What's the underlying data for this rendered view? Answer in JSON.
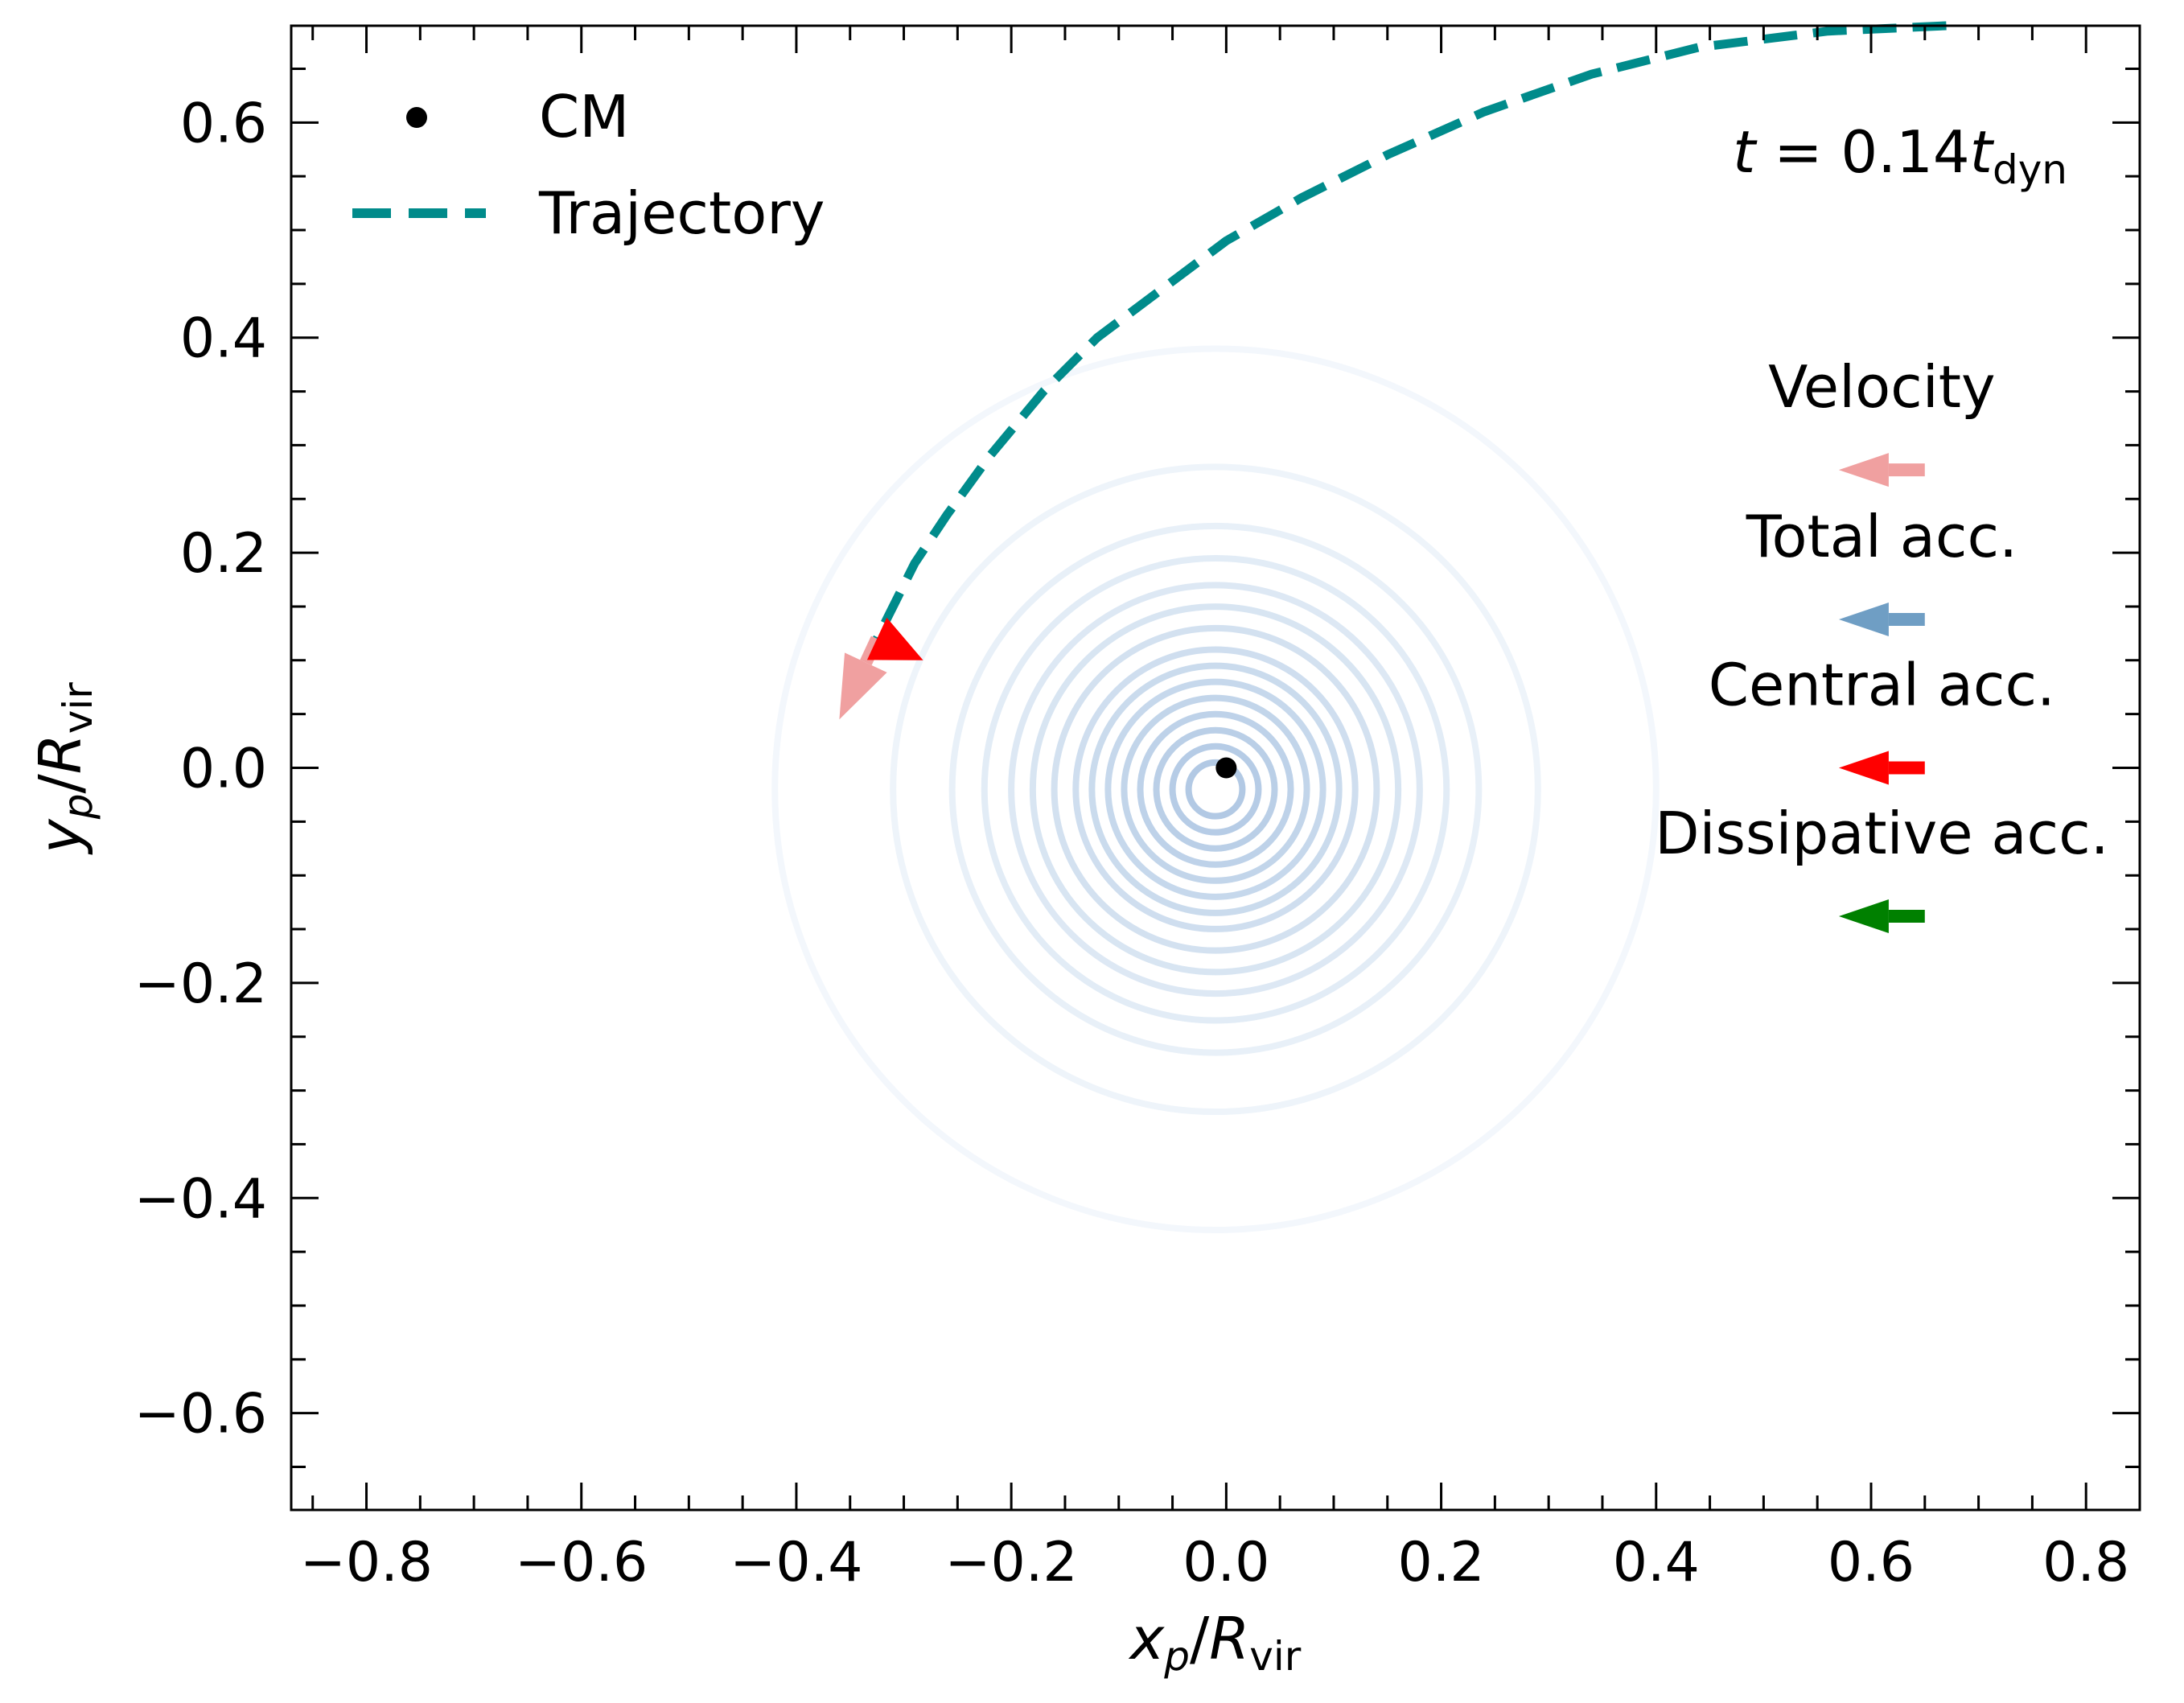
{
  "chart_data": {
    "type": "scatter",
    "xlabel": {
      "var": "x",
      "sub": "p",
      "slash": "/",
      "denom": "R",
      "denom_sub": "vir"
    },
    "ylabel": {
      "var": "y",
      "sub": "p",
      "slash": "/",
      "denom": "R",
      "denom_sub": "vir"
    },
    "xlim": [
      -0.87,
      0.85
    ],
    "ylim": [
      -0.69,
      0.69
    ],
    "xticks": [
      {
        "v": -0.8,
        "label": "−0.8"
      },
      {
        "v": -0.6,
        "label": "−0.6"
      },
      {
        "v": -0.4,
        "label": "−0.4"
      },
      {
        "v": -0.2,
        "label": "−0.2"
      },
      {
        "v": 0.0,
        "label": "0.0"
      },
      {
        "v": 0.2,
        "label": "0.2"
      },
      {
        "v": 0.4,
        "label": "0.4"
      },
      {
        "v": 0.6,
        "label": "0.6"
      },
      {
        "v": 0.8,
        "label": "0.8"
      }
    ],
    "yticks": [
      {
        "v": -0.6,
        "label": "−0.6"
      },
      {
        "v": -0.4,
        "label": "−0.4"
      },
      {
        "v": -0.2,
        "label": "−0.2"
      },
      {
        "v": 0.0,
        "label": "0.0"
      },
      {
        "v": 0.2,
        "label": "0.2"
      },
      {
        "v": 0.4,
        "label": "0.4"
      },
      {
        "v": 0.6,
        "label": "0.6"
      }
    ],
    "minor_step": 0.05,
    "grid": false,
    "legend_position": "upper-left",
    "legend": [
      {
        "label": "CM",
        "marker": "dot",
        "color": "#000000"
      },
      {
        "label": "Trajectory",
        "marker": "dashed-line",
        "color": "#008b8b"
      }
    ],
    "time_label": {
      "lhs": "t",
      "eq": " = 0.14",
      "var": "t",
      "sub": "dyn"
    },
    "cm_point": {
      "x": 0.0,
      "y": 0.0
    },
    "contours": {
      "center": [
        -0.01,
        -0.02
      ],
      "radii": [
        0.41,
        0.3,
        0.245,
        0.215,
        0.19,
        0.17,
        0.15,
        0.13,
        0.115,
        0.1,
        0.085,
        0.07,
        0.055,
        0.04,
        0.025
      ],
      "colors": [
        "#f3f7fc",
        "#eef4fa",
        "#e8f0f8",
        "#e2ecf6",
        "#dde8f4",
        "#d8e5f2",
        "#d3e1f0",
        "#cfdeef",
        "#cadbed",
        "#c6d8ec",
        "#c2d5ea",
        "#bed2e9",
        "#bacfe7",
        "#b6cce6",
        "#b2c9e4"
      ]
    },
    "trajectory": {
      "color": "#008b8b",
      "x": [
        0.67,
        0.56,
        0.44,
        0.34,
        0.24,
        0.15,
        0.07,
        0.0,
        -0.06,
        -0.12,
        -0.17,
        -0.22,
        -0.26,
        -0.29,
        -0.31,
        -0.325
      ],
      "y": [
        0.69,
        0.685,
        0.67,
        0.645,
        0.61,
        0.57,
        0.53,
        0.49,
        0.445,
        0.4,
        0.35,
        0.29,
        0.235,
        0.19,
        0.15,
        0.12
      ]
    },
    "vectors": [
      {
        "name": "velocity",
        "color": "#f0a0a0",
        "x0": -0.325,
        "y0": 0.12,
        "dx": -0.035,
        "dy": -0.075
      },
      {
        "name": "central-acc",
        "color": "#ff0000",
        "x0": -0.325,
        "y0": 0.12,
        "dx": 0.043,
        "dy": -0.02
      }
    ],
    "key_arrows": [
      {
        "label": "Velocity",
        "color": "#f0a0a0",
        "y": 0.277
      },
      {
        "label": "Total acc.",
        "color": "#6f9ec4",
        "y": 0.138
      },
      {
        "label": "Central acc.",
        "color": "#ff0000",
        "y": 0.0
      },
      {
        "label": "Dissipative acc.",
        "color": "#008000",
        "y": -0.138
      }
    ],
    "key_arrow_x": [
      0.65,
      0.57
    ]
  }
}
